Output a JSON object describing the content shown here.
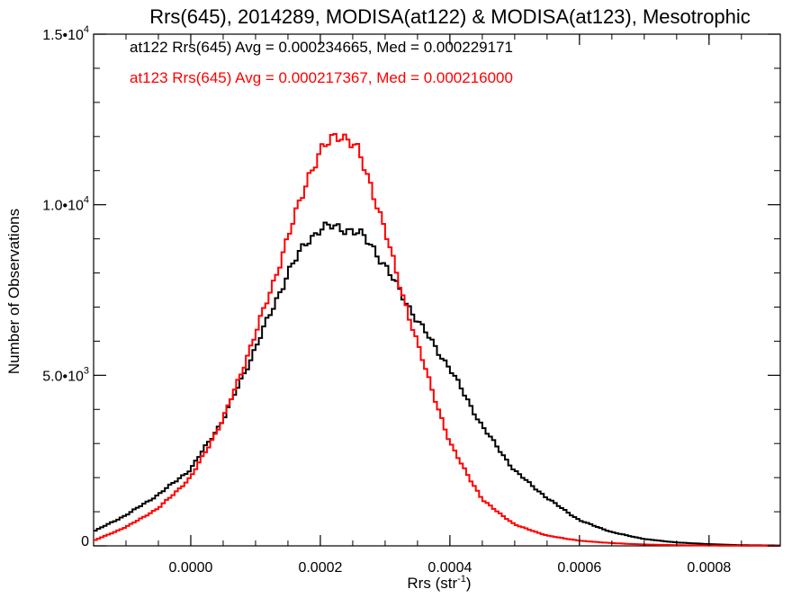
{
  "chart_data": {
    "type": "line",
    "title": "Rrs(645), 2014289, MODISA(at122) & MODISA(at123), Mesotrophic",
    "xlabel_main": "Rrs (str",
    "xlabel_sup": "-1",
    "xlabel_end": ")",
    "ylabel": "Number of Observations",
    "xlim": [
      -0.00015,
      0.00091
    ],
    "ylim": [
      0,
      15000
    ],
    "x_ticks": [
      {
        "value": 0.0,
        "label": "0.0000"
      },
      {
        "value": 0.0002,
        "label": "0.0002"
      },
      {
        "value": 0.0004,
        "label": "0.0004"
      },
      {
        "value": 0.0006,
        "label": "0.0006"
      },
      {
        "value": 0.0008,
        "label": "0.0008"
      }
    ],
    "y_ticks": [
      {
        "value": 0,
        "label": "0",
        "sup": ""
      },
      {
        "value": 5000,
        "label": "5.0•10",
        "sup": "3"
      },
      {
        "value": 10000,
        "label": "1.0•10",
        "sup": "4"
      },
      {
        "value": 15000,
        "label": "1.5•10",
        "sup": "4"
      }
    ],
    "series": [
      {
        "name": "at122",
        "color": "#000000",
        "legend": "at122 Rrs(645) Avg = 0.000234665, Med = 0.000229171",
        "points": [
          [
            -0.00015,
            420
          ],
          [
            -0.0001,
            900
          ],
          [
            -5e-05,
            1500
          ],
          [
            0.0,
            2250
          ],
          [
            5e-05,
            3700
          ],
          [
            0.0001,
            5800
          ],
          [
            0.00015,
            8000
          ],
          [
            0.00018,
            8950
          ],
          [
            0.0002,
            9300
          ],
          [
            0.00022,
            9350
          ],
          [
            0.00024,
            9300
          ],
          [
            0.00026,
            9150
          ],
          [
            0.00028,
            8800
          ],
          [
            0.0003,
            8200
          ],
          [
            0.00032,
            7550
          ],
          [
            0.00035,
            6600
          ],
          [
            0.0004,
            5200
          ],
          [
            0.00045,
            3500
          ],
          [
            0.0005,
            2200
          ],
          [
            0.00055,
            1400
          ],
          [
            0.0006,
            750
          ],
          [
            0.00065,
            400
          ],
          [
            0.0007,
            200
          ],
          [
            0.00075,
            100
          ],
          [
            0.0008,
            50
          ],
          [
            0.00085,
            20
          ],
          [
            0.00091,
            10
          ]
        ]
      },
      {
        "name": "at123",
        "color": "#ff0000",
        "legend": "at123 Rrs(645) Avg = 0.000217367, Med = 0.000216000",
        "points": [
          [
            -0.00015,
            150
          ],
          [
            -0.0001,
            550
          ],
          [
            -5e-05,
            1100
          ],
          [
            0.0,
            2000
          ],
          [
            5e-05,
            3700
          ],
          [
            0.0001,
            6200
          ],
          [
            0.00015,
            9000
          ],
          [
            0.00018,
            10800
          ],
          [
            0.0002,
            11500
          ],
          [
            0.00022,
            12000
          ],
          [
            0.00023,
            12100
          ],
          [
            0.00024,
            11950
          ],
          [
            0.00026,
            11500
          ],
          [
            0.00028,
            10500
          ],
          [
            0.0003,
            9200
          ],
          [
            0.00032,
            7850
          ],
          [
            0.00035,
            5900
          ],
          [
            0.0004,
            3000
          ],
          [
            0.00045,
            1350
          ],
          [
            0.0005,
            620
          ],
          [
            0.00055,
            300
          ],
          [
            0.0006,
            150
          ],
          [
            0.00065,
            80
          ],
          [
            0.0007,
            40
          ],
          [
            0.00075,
            20
          ],
          [
            0.0008,
            10
          ],
          [
            0.00085,
            5
          ],
          [
            0.00091,
            0
          ]
        ]
      }
    ],
    "grid": false,
    "legend_position": "top-left"
  }
}
